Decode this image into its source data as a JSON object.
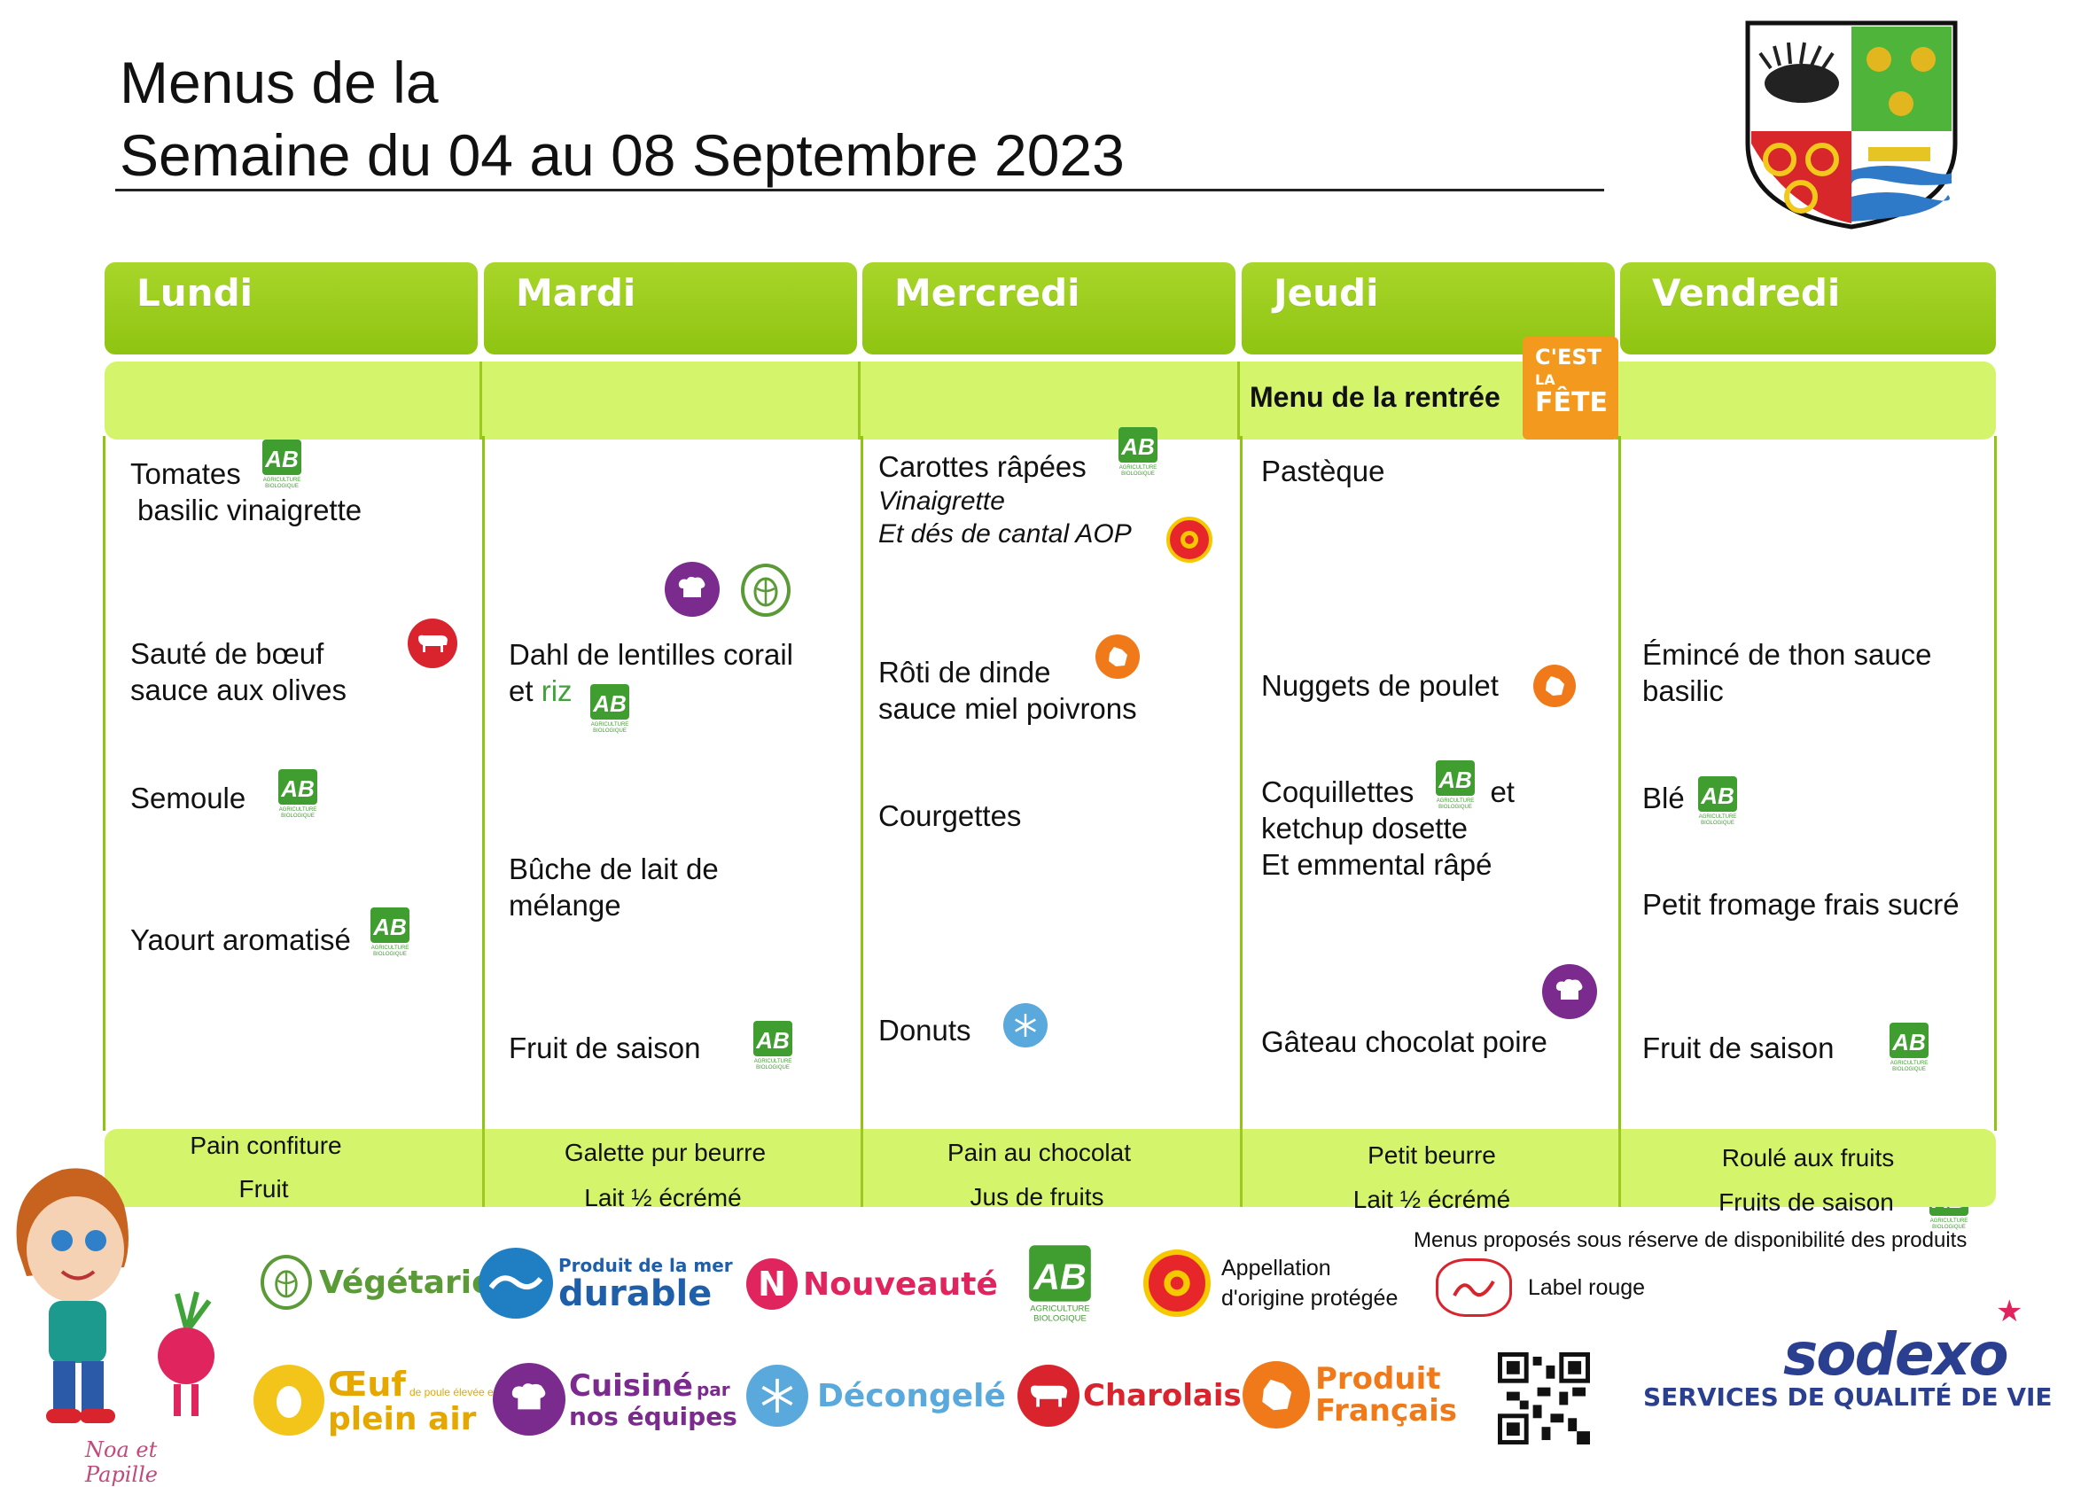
{
  "header": {
    "title_line1": "Menus de la",
    "title_line2": "Semaine du 04 au 08 Septembre 2023"
  },
  "days": [
    "Lundi",
    "Mardi",
    "Mercredi",
    "Jeudi",
    "Vendredi"
  ],
  "special": {
    "label": "Menu de la rentrée",
    "badge_line1": "C'EST",
    "badge_line2": "LA",
    "badge_line3": "FÊTE"
  },
  "menus": {
    "lundi": {
      "starter_line1": "Tomates",
      "starter_line2": "basilic vinaigrette",
      "main_line1": "Sauté de bœuf",
      "main_line2": "sauce aux olives",
      "side": "Semoule",
      "dessert": "Yaourt aromatisé"
    },
    "mardi": {
      "main_line1": "Dahl de lentilles corail",
      "main_line2_a": "et ",
      "main_line2_b": "riz",
      "cheese_line1": "Bûche de lait de",
      "cheese_line2": "mélange",
      "dessert": "Fruit de saison"
    },
    "mercredi": {
      "starter_line1": "Carottes râpées",
      "starter_line2": "Vinaigrette",
      "starter_line3": "Et dés de cantal AOP",
      "main_line1": "Rôti de dinde",
      "main_line2": "sauce miel poivrons",
      "side": "Courgettes",
      "dessert": "Donuts"
    },
    "jeudi": {
      "starter": "Pastèque",
      "main": "Nuggets de poulet",
      "side_line1_a": "Coquillettes",
      "side_line1_b": "et",
      "side_line2": "ketchup dosette",
      "side_line3": "Et emmental râpé",
      "dessert": "Gâteau chocolat poire"
    },
    "vendredi": {
      "main_line1": "Émincé de thon sauce",
      "main_line2": "basilic",
      "side": "Blé",
      "cheese": "Petit fromage frais sucré",
      "dessert": "Fruit de saison"
    }
  },
  "snacks": [
    {
      "line1": "Pain confiture",
      "line2": "Fruit"
    },
    {
      "line1": "Galette pur beurre",
      "line2": "Lait ½ écrémé"
    },
    {
      "line1": "Pain au chocolat",
      "line2": "Jus de fruits"
    },
    {
      "line1": "Petit beurre",
      "line2": "Lait ½ écrémé"
    },
    {
      "line1": "Roulé aux fruits",
      "line2": "Fruits de saison"
    }
  ],
  "disclaimer": "Menus proposés sous réserve de disponibilité des produits",
  "ab_label": {
    "mark": "AB",
    "sub1": "AGRICULTURE",
    "sub2": "BIOLOGIQUE"
  },
  "legend": {
    "vegetarien": "Végétarien",
    "mer_line1": "Produit de la mer",
    "mer_line2": "durable",
    "nouveaute_letter": "N",
    "nouveaute": "Nouveauté",
    "aop_line1": "Appellation",
    "aop_line2": "d'origine protégée",
    "label_rouge": "Label rouge",
    "oeuf_line1": "Œuf",
    "oeuf_small": "de poule élevée en",
    "oeuf_line2": "plein air",
    "cuisine_line1": "Cuisiné",
    "cuisine_par": "par",
    "cuisine_line2": "nos équipes",
    "decongele": "Décongelé",
    "charolais": "Charolais",
    "produit_line1": "Produit",
    "produit_line2": "Français"
  },
  "brand": {
    "name": "sodexo",
    "tagline": "SERVICES DE QUALITÉ DE VIE"
  },
  "mascot_caption": "Noa et Papille",
  "colors": {
    "header_green": "#98cc1a",
    "band_green": "#d4f56b",
    "ab_green": "#3f9e2f",
    "purple": "#7b2a8e",
    "orange": "#f07a1a",
    "red": "#d9232d",
    "light_blue": "#5aa9dc",
    "navy": "#2a3f8f",
    "pink": "#e0245e",
    "olive": "#5b9b37"
  },
  "icons": [
    "ab-bio-icon",
    "aop-icon",
    "charolais-icon",
    "cuisine-icon",
    "vegetarian-icon",
    "produit-francais-icon",
    "decongele-icon",
    "qr-code-icon"
  ]
}
